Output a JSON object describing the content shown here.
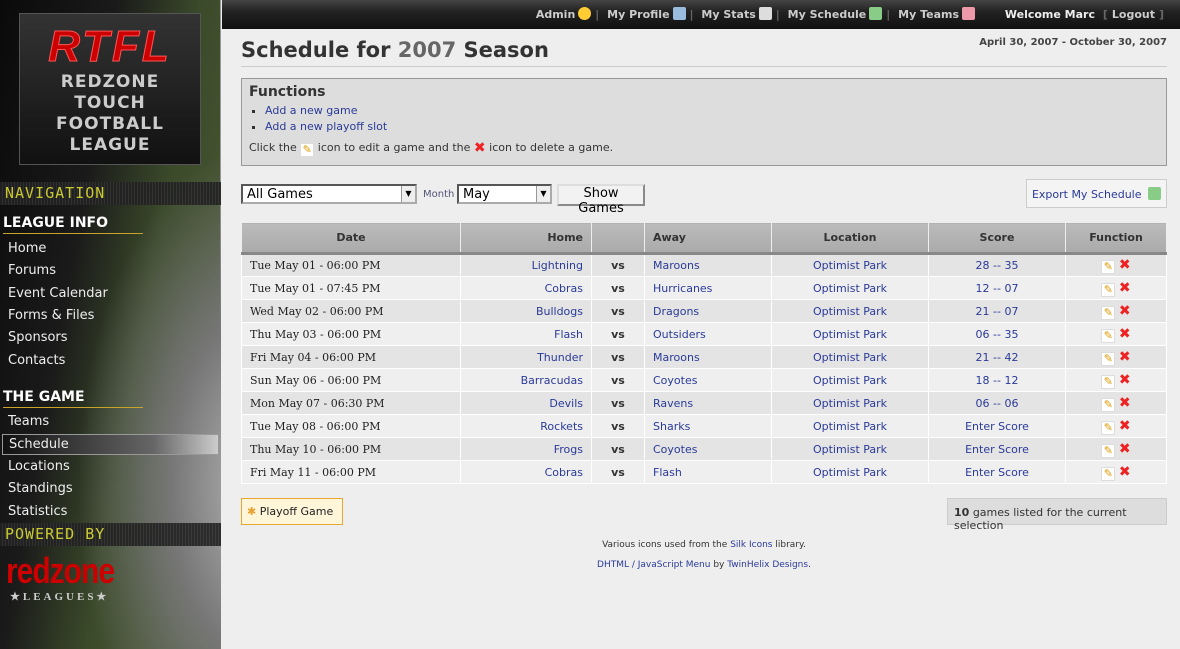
{
  "sidebar": {
    "logo": {
      "big": "RTFL",
      "lines": [
        "REDZONE",
        "TOUCH",
        "FOOTBALL",
        "LEAGUE"
      ]
    },
    "navigation_label": "NAVIGATION",
    "sections": [
      {
        "title": "LEAGUE INFO",
        "items": [
          "Home",
          "Forums",
          "Event Calendar",
          "Forms & Files",
          "Sponsors",
          "Contacts"
        ]
      },
      {
        "title": "THE GAME",
        "items": [
          "Teams",
          "Schedule",
          "Locations",
          "Standings",
          "Statistics"
        ]
      }
    ],
    "active_item": "Schedule",
    "powered_label": "POWERED BY",
    "powered_logo": "redzone",
    "powered_logo_sub": "★LEAGUES★"
  },
  "topbar": {
    "admin": "Admin",
    "profile": "My Profile",
    "stats": "My Stats",
    "schedule": "My Schedule",
    "teams": "My Teams",
    "welcome": "Welcome Marc",
    "logout": "Logout"
  },
  "header": {
    "title_pre": "Schedule for",
    "year": "2007",
    "title_post": "Season",
    "range": "April 30, 2007 - October 30, 2007"
  },
  "functions": {
    "title": "Functions",
    "links": [
      "Add a new game",
      "Add a new playoff slot"
    ],
    "hint_1": "Click the",
    "hint_2": "icon to edit a game and the",
    "hint_3": "icon to delete a game."
  },
  "filters": {
    "games_select": "All Games",
    "month_label": "Month",
    "month_select": "May",
    "show_button": "Show Games",
    "export": "Export My Schedule"
  },
  "table": {
    "headers": [
      "Date",
      "Home",
      "",
      "Away",
      "Location",
      "Score",
      "Function"
    ],
    "rows": [
      {
        "date": "Tue May 01 - 06:00 PM",
        "home": "Lightning",
        "vs": "vs",
        "away": "Maroons",
        "location": "Optimist Park",
        "score": "28 -- 35"
      },
      {
        "date": "Tue May 01 - 07:45 PM",
        "home": "Cobras",
        "vs": "vs",
        "away": "Hurricanes",
        "location": "Optimist Park",
        "score": "12 -- 07"
      },
      {
        "date": "Wed May 02 - 06:00 PM",
        "home": "Bulldogs",
        "vs": "vs",
        "away": "Dragons",
        "location": "Optimist Park",
        "score": "21 -- 07"
      },
      {
        "date": "Thu May 03 - 06:00 PM",
        "home": "Flash",
        "vs": "vs",
        "away": "Outsiders",
        "location": "Optimist Park",
        "score": "06 -- 35"
      },
      {
        "date": "Fri May 04 - 06:00 PM",
        "home": "Thunder",
        "vs": "vs",
        "away": "Maroons",
        "location": "Optimist Park",
        "score": "21 -- 42"
      },
      {
        "date": "Sun May 06 - 06:00 PM",
        "home": "Barracudas",
        "vs": "vs",
        "away": "Coyotes",
        "location": "Optimist Park",
        "score": "18 -- 12"
      },
      {
        "date": "Mon May 07 - 06:30 PM",
        "home": "Devils",
        "vs": "vs",
        "away": "Ravens",
        "location": "Optimist Park",
        "score": "06 -- 06"
      },
      {
        "date": "Tue May 08 - 06:00 PM",
        "home": "Rockets",
        "vs": "vs",
        "away": "Sharks",
        "location": "Optimist Park",
        "score": "Enter Score"
      },
      {
        "date": "Thu May 10 - 06:00 PM",
        "home": "Frogs",
        "vs": "vs",
        "away": "Coyotes",
        "location": "Optimist Park",
        "score": "Enter Score"
      },
      {
        "date": "Fri May 11 - 06:00 PM",
        "home": "Cobras",
        "vs": "vs",
        "away": "Flash",
        "location": "Optimist Park",
        "score": "Enter Score"
      }
    ]
  },
  "footer": {
    "playoff_button": "Playoff Game",
    "count": "10",
    "count_text": "games listed for the current selection",
    "credit1_pre": "Various icons used from the",
    "credit1_link": "Silk Icons",
    "credit1_post": "library.",
    "credit2_link": "DHTML / JavaScript Menu",
    "credit2_mid": "by",
    "credit2_link2": "TwinHelix Designs",
    "credit2_post": "."
  },
  "colors": {
    "link": "#2a3a99",
    "delete": "#e22",
    "accent": "#c9a42a"
  }
}
